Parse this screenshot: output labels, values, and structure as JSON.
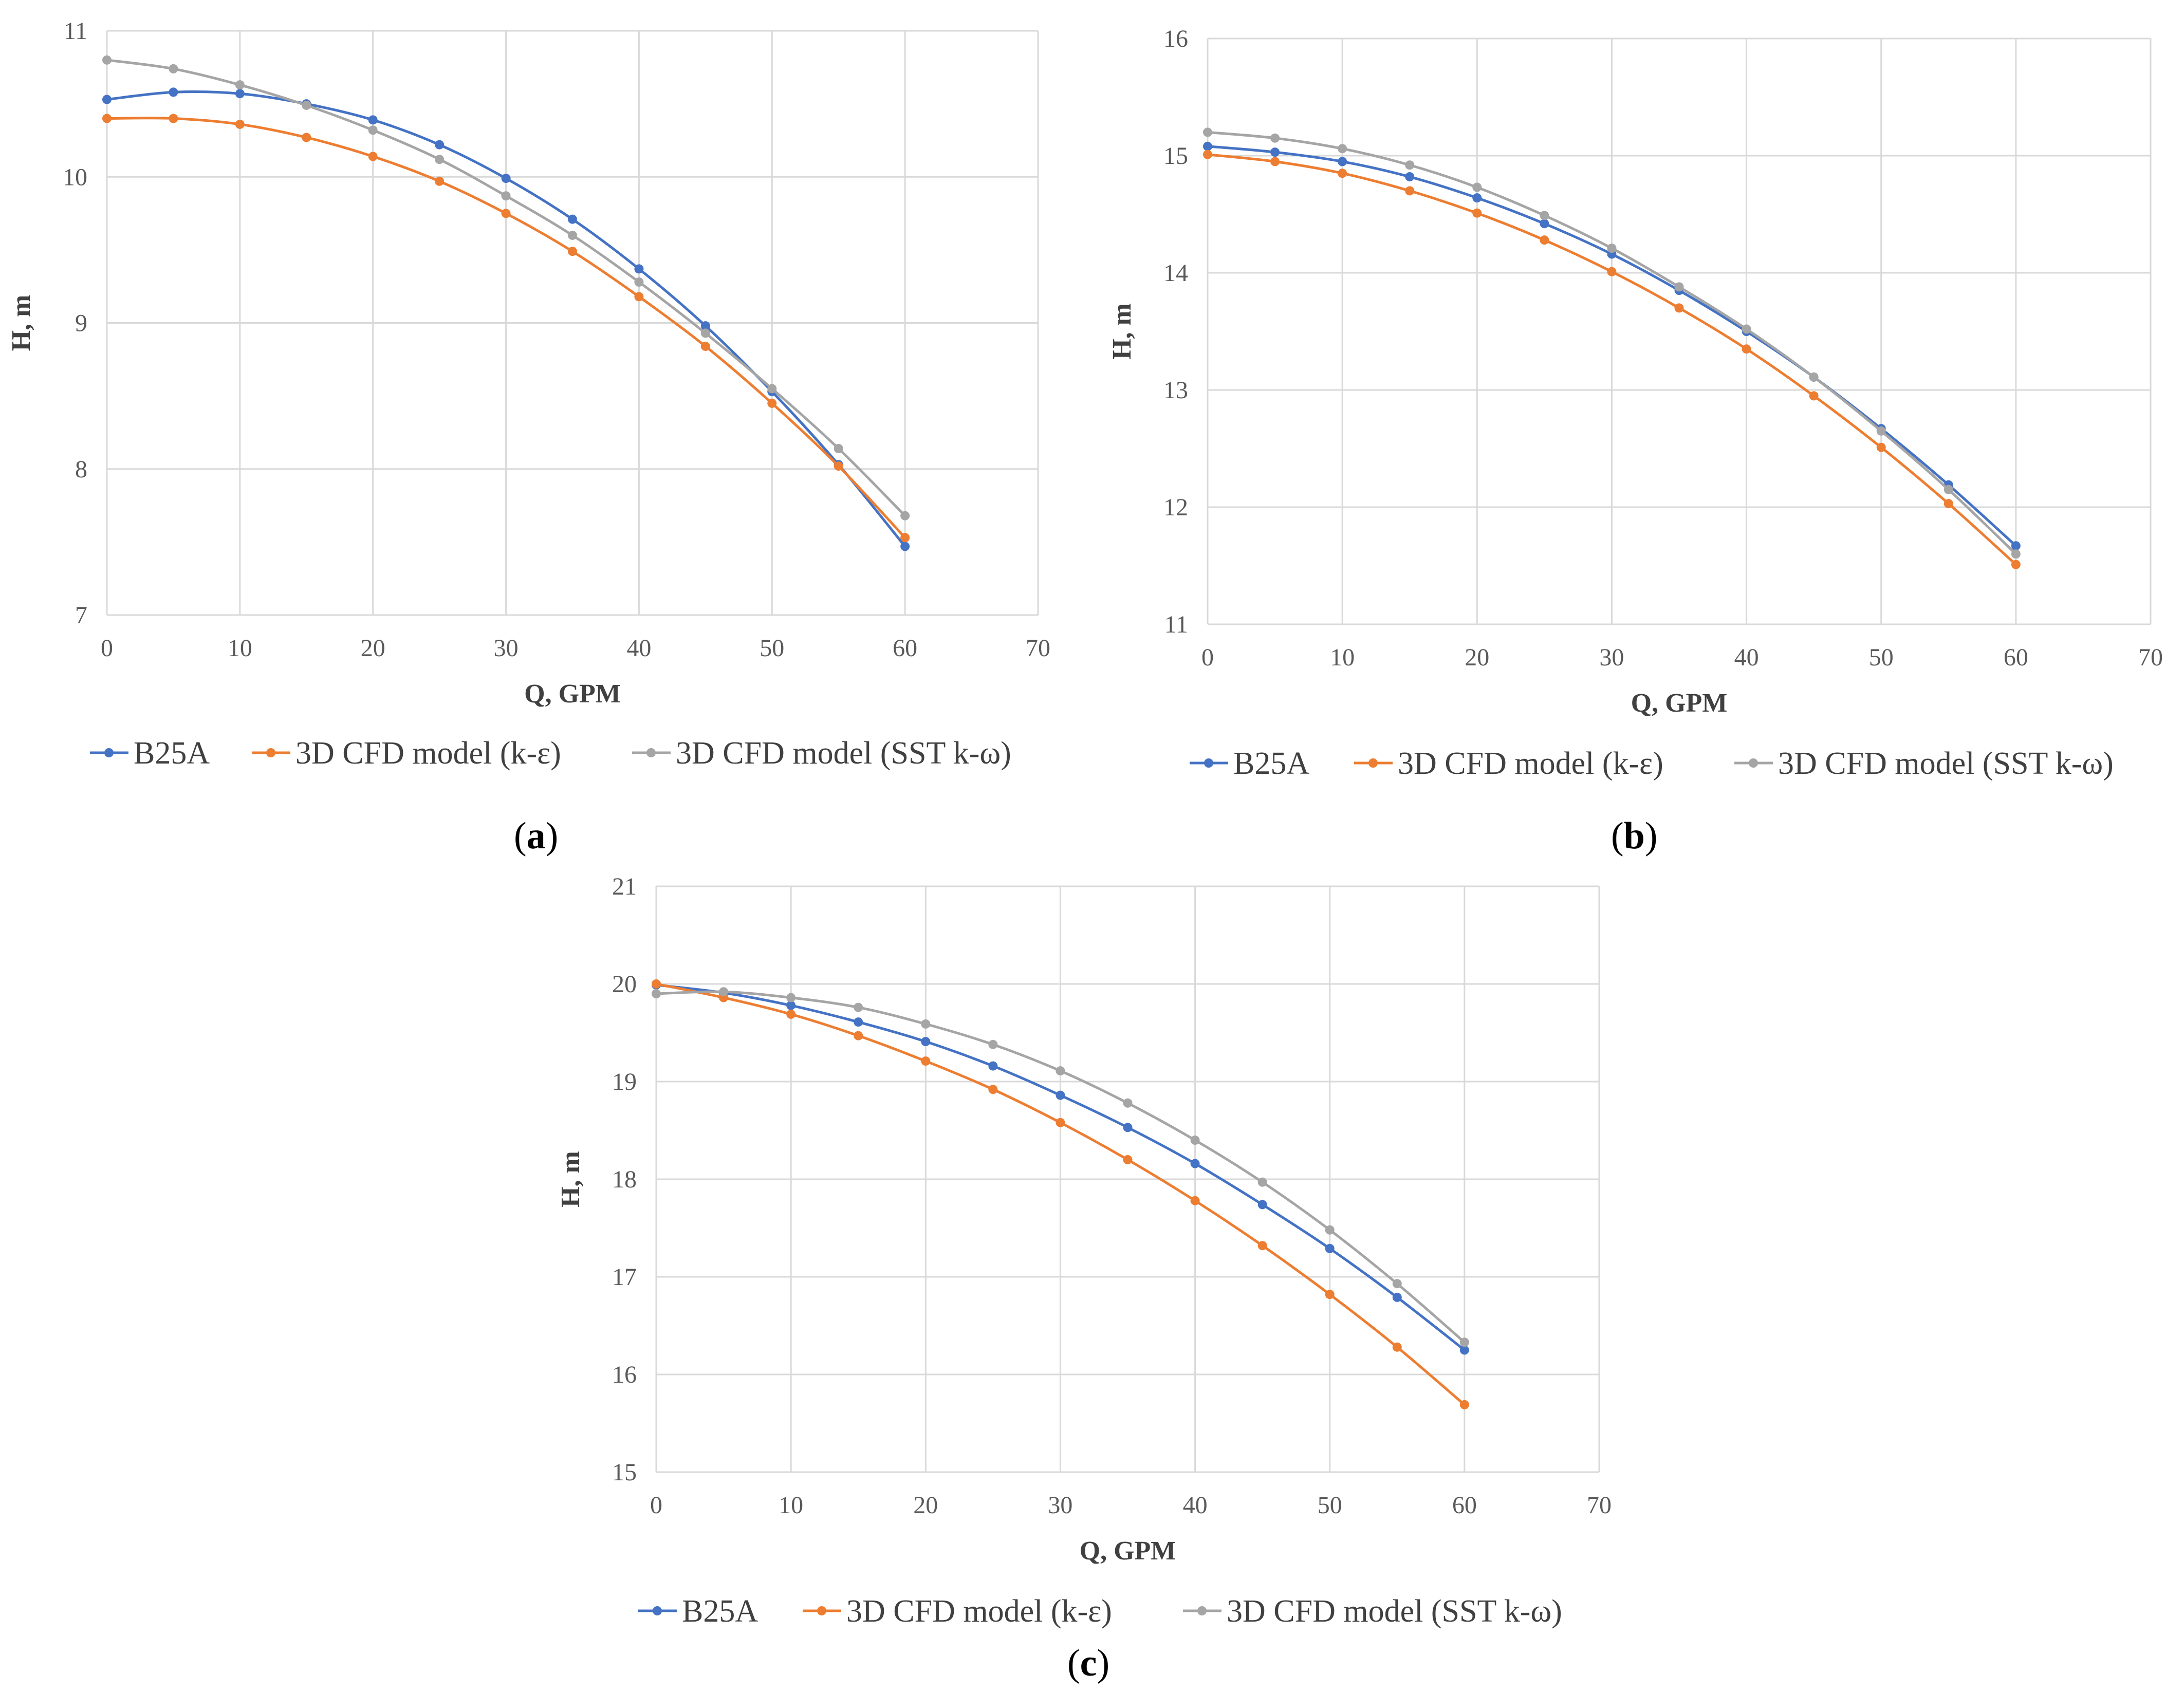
{
  "captions": {
    "a": {
      "open": "(",
      "letter": "a",
      "close": ")"
    },
    "b": {
      "open": "(",
      "letter": "b",
      "close": ")"
    },
    "c": {
      "open": "(",
      "letter": "c",
      "close": ")"
    }
  },
  "chart_data": [
    {
      "id": "a",
      "type": "line",
      "title": "",
      "xlabel": "Q, GPM",
      "ylabel": "H, m",
      "xlim": [
        0,
        70
      ],
      "ylim": [
        7,
        11
      ],
      "xticks": [
        0,
        10,
        20,
        30,
        40,
        50,
        60,
        70
      ],
      "yticks": [
        7,
        8,
        9,
        10,
        11
      ],
      "grid": true,
      "legend_position": "bottom",
      "x": [
        0,
        5,
        10,
        15,
        20,
        25,
        30,
        35,
        40,
        45,
        50,
        55,
        60
      ],
      "series": [
        {
          "name": "B25A",
          "color": "#4472C4",
          "values": [
            10.53,
            10.58,
            10.57,
            10.5,
            10.39,
            10.22,
            9.99,
            9.71,
            9.37,
            8.98,
            8.53,
            8.03,
            7.47
          ]
        },
        {
          "name": "3D CFD model (k-ε)",
          "color": "#ED7D31",
          "values": [
            10.4,
            10.4,
            10.36,
            10.27,
            10.14,
            9.97,
            9.75,
            9.49,
            9.18,
            8.84,
            8.45,
            8.02,
            7.53
          ]
        },
        {
          "name": "3D CFD model (SST k-ω)",
          "color": "#A5A5A5",
          "values": [
            10.8,
            10.74,
            10.63,
            10.49,
            10.32,
            10.12,
            9.87,
            9.6,
            9.28,
            8.93,
            8.55,
            8.14,
            7.68
          ]
        }
      ]
    },
    {
      "id": "b",
      "type": "line",
      "title": "",
      "xlabel": "Q, GPM",
      "ylabel": "H, m",
      "xlim": [
        0,
        70
      ],
      "ylim": [
        11,
        16
      ],
      "xticks": [
        0,
        10,
        20,
        30,
        40,
        50,
        60,
        70
      ],
      "yticks": [
        11,
        12,
        13,
        14,
        15,
        16
      ],
      "grid": true,
      "legend_position": "bottom",
      "x": [
        0,
        5,
        10,
        15,
        20,
        25,
        30,
        35,
        40,
        45,
        50,
        55,
        60
      ],
      "series": [
        {
          "name": "B25A",
          "color": "#4472C4",
          "values": [
            15.08,
            15.03,
            14.95,
            14.82,
            14.64,
            14.42,
            14.16,
            13.85,
            13.5,
            13.11,
            12.67,
            12.19,
            11.67
          ]
        },
        {
          "name": "3D CFD model (k-ε)",
          "color": "#ED7D31",
          "values": [
            15.01,
            14.95,
            14.85,
            14.7,
            14.51,
            14.28,
            14.01,
            13.7,
            13.35,
            12.95,
            12.51,
            12.03,
            11.51
          ]
        },
        {
          "name": "3D CFD model (SST k-ω)",
          "color": "#A5A5A5",
          "values": [
            15.2,
            15.15,
            15.06,
            14.92,
            14.73,
            14.49,
            14.21,
            13.88,
            13.52,
            13.11,
            12.65,
            12.15,
            11.6
          ]
        }
      ]
    },
    {
      "id": "c",
      "type": "line",
      "title": "",
      "xlabel": "Q, GPM",
      "ylabel": "H, m",
      "xlim": [
        0,
        70
      ],
      "ylim": [
        15,
        21
      ],
      "xticks": [
        0,
        10,
        20,
        30,
        40,
        50,
        60,
        70
      ],
      "yticks": [
        15,
        16,
        17,
        18,
        19,
        20,
        21
      ],
      "grid": true,
      "legend_position": "bottom",
      "x": [
        0,
        5,
        10,
        15,
        20,
        25,
        30,
        35,
        40,
        45,
        50,
        55,
        60
      ],
      "series": [
        {
          "name": "B25A",
          "color": "#4472C4",
          "values": [
            19.99,
            19.91,
            19.78,
            19.61,
            19.41,
            19.16,
            18.86,
            18.53,
            18.16,
            17.74,
            17.29,
            16.79,
            16.25
          ]
        },
        {
          "name": "3D CFD model (k-ε)",
          "color": "#ED7D31",
          "values": [
            20.0,
            19.86,
            19.69,
            19.47,
            19.21,
            18.92,
            18.58,
            18.2,
            17.78,
            17.32,
            16.82,
            16.28,
            15.69
          ]
        },
        {
          "name": "3D CFD model (SST k-ω)",
          "color": "#A5A5A5",
          "values": [
            19.9,
            19.92,
            19.86,
            19.76,
            19.59,
            19.38,
            19.11,
            18.78,
            18.4,
            17.97,
            17.48,
            16.93,
            16.33
          ]
        }
      ]
    }
  ]
}
